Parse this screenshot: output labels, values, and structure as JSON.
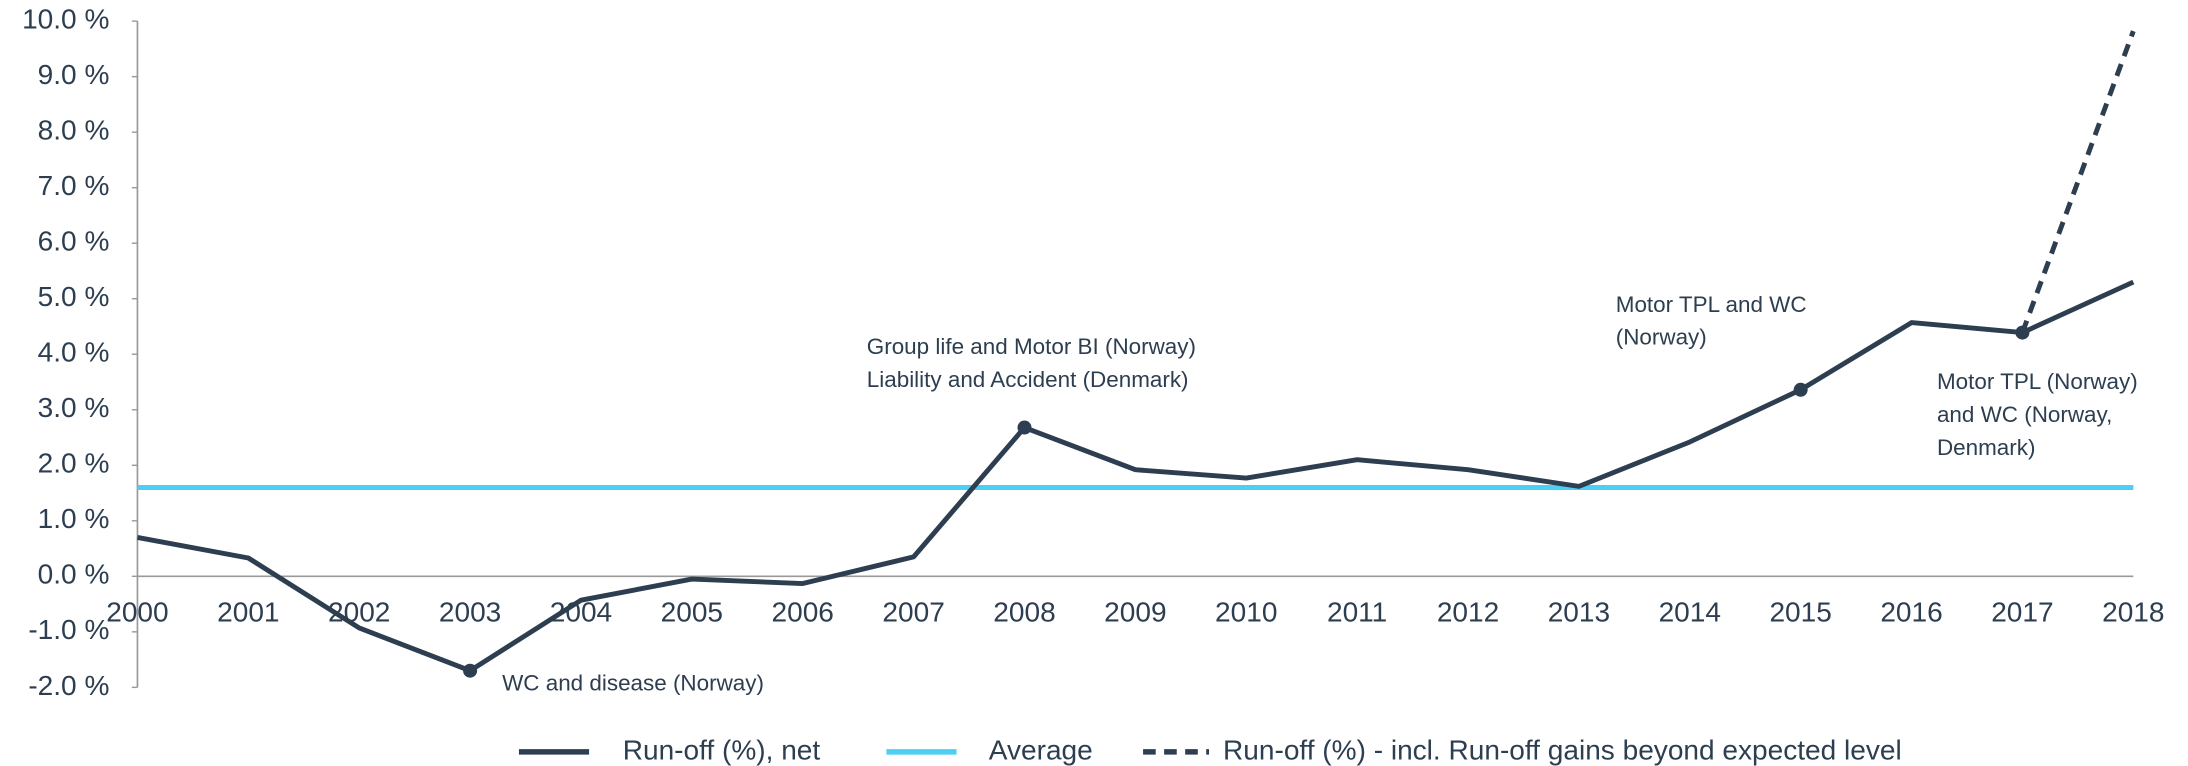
{
  "chart_data": {
    "type": "line",
    "categories": [
      "2000",
      "2001",
      "2002",
      "2003",
      "2004",
      "2005",
      "2006",
      "2007",
      "2008",
      "2009",
      "2010",
      "2011",
      "2012",
      "2013",
      "2014",
      "2015",
      "2016",
      "2017",
      "2018"
    ],
    "series": [
      {
        "name": "Run-off (%), net",
        "color": "#2d3e50",
        "style": "solid",
        "markers": [
          3,
          8,
          15,
          17
        ],
        "values": [
          0.7,
          0.33,
          -0.93,
          -1.7,
          -0.43,
          -0.05,
          -0.13,
          0.35,
          2.68,
          1.92,
          1.77,
          2.1,
          1.92,
          1.62,
          2.42,
          3.36,
          4.57,
          4.39,
          5.3
        ]
      },
      {
        "name": "Average",
        "color": "#4dcff3",
        "style": "solid",
        "values": [
          1.6,
          1.6,
          1.6,
          1.6,
          1.6,
          1.6,
          1.6,
          1.6,
          1.6,
          1.6,
          1.6,
          1.6,
          1.6,
          1.6,
          1.6,
          1.6,
          1.6,
          1.6,
          1.6
        ]
      },
      {
        "name": "Run-off (%) - incl. Run-off gains beyond expected level",
        "color": "#2d3e50",
        "style": "dashed",
        "values": [
          null,
          null,
          null,
          null,
          null,
          null,
          null,
          null,
          null,
          null,
          null,
          null,
          null,
          null,
          null,
          null,
          null,
          4.39,
          9.82
        ]
      }
    ],
    "ylim": [
      -2,
      10
    ],
    "yticks": [
      {
        "value": -2,
        "label": "-2.0 %"
      },
      {
        "value": -1,
        "label": "-1.0 %"
      },
      {
        "value": 0,
        "label": "0.0 %"
      },
      {
        "value": 1,
        "label": "1.0 %"
      },
      {
        "value": 2,
        "label": "2.0 %"
      },
      {
        "value": 3,
        "label": "3.0 %"
      },
      {
        "value": 4,
        "label": "4.0 %"
      },
      {
        "value": 5,
        "label": "5.0 %"
      },
      {
        "value": 6,
        "label": "6.0 %"
      },
      {
        "value": 7,
        "label": "7.0 %"
      },
      {
        "value": 8,
        "label": "8.0 %"
      },
      {
        "value": 9,
        "label": "9.0 %"
      },
      {
        "value": 10,
        "label": "10.0 %"
      }
    ],
    "annotations": [
      {
        "lines": [
          "WC and disease (Norway)"
        ]
      },
      {
        "lines": [
          "Group life and Motor BI (Norway)",
          "Liability and Accident (Denmark)"
        ]
      },
      {
        "lines": [
          "Motor TPL and WC",
          "(Norway)"
        ]
      },
      {
        "lines": [
          "Motor TPL (Norway)",
          "and WC (Norway,",
          "Denmark)"
        ]
      }
    ],
    "legend": "bottom"
  }
}
